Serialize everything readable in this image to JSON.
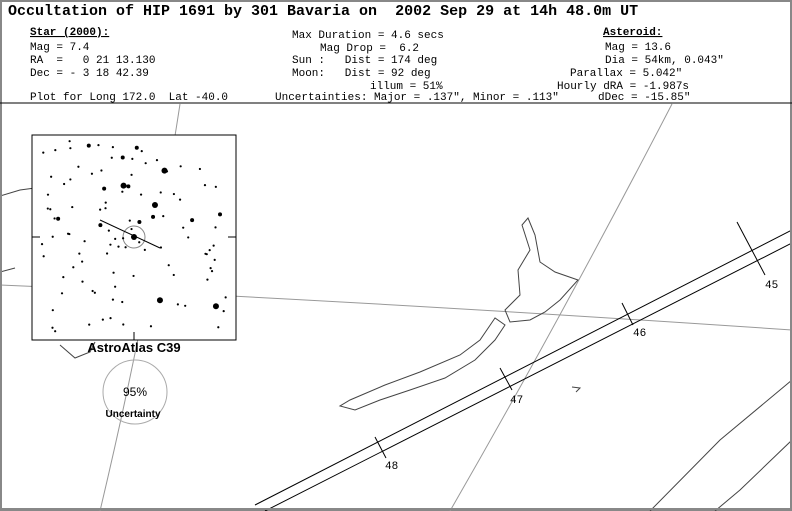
{
  "header": {
    "title": "Occultation of HIP 1691 by 301 Bavaria on  2002 Sep 29 at 14h 48.0m UT"
  },
  "star": {
    "heading": "Star (2000):",
    "lines": [
      "Mag = 7.4",
      "RA  =   0 21 13.130",
      "Dec = - 3 18 42.39"
    ]
  },
  "event": {
    "lines": [
      "Max Duration = 4.6 secs",
      "Mag Drop =  6.2",
      "Sun :   Dist = 174 deg",
      "Moon:   Dist = 92 deg",
      "illum = 51%"
    ]
  },
  "asteroid": {
    "heading": "Asteroid:",
    "lines": [
      "Mag = 13.6",
      "Dia = 54km, 0.043\"",
      "Parallax = 5.042\"",
      "Hourly dRA = -1.987s",
      "dDec = -15.85\""
    ]
  },
  "footer": {
    "plot": "Plot for Long 172.0  Lat -40.0",
    "uncertainties": "Uncertainties: Major = .137\", Minor = .113\""
  },
  "finder": {
    "label": "AstroAtlas C39"
  },
  "uncertainty": {
    "percent": "95%",
    "label": "Uncertainty"
  },
  "time_marks": [
    "45",
    "46",
    "47",
    "48"
  ]
}
